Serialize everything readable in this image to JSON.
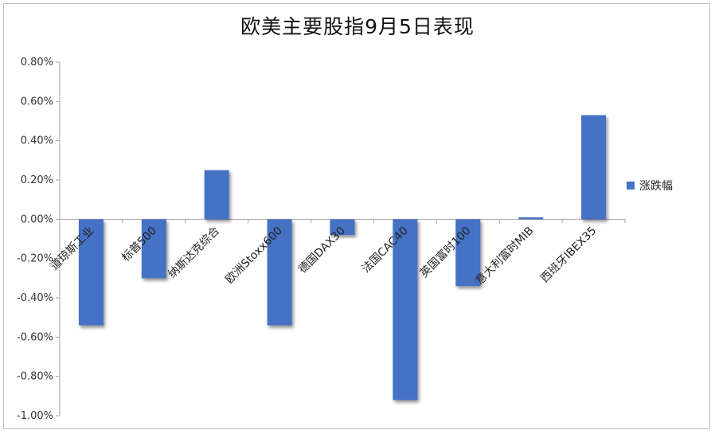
{
  "chart_data": {
    "type": "bar",
    "title": "欧美主要股指9月5日表现",
    "categories": [
      "道琼斯工业",
      "标普500",
      "纳斯达克综合",
      "欧洲Stoxx600",
      "德国DAX30",
      "法国CAC40",
      "英国富时100",
      "意大利富时MIB",
      "西班牙IBEX35"
    ],
    "series": [
      {
        "name": "涨跌幅",
        "values": [
          -0.54,
          -0.3,
          0.25,
          -0.54,
          -0.08,
          -0.92,
          -0.34,
          0.01,
          0.53
        ]
      }
    ],
    "ylim": [
      -1.0,
      0.8
    ],
    "yticks": [
      "0.80%",
      "0.60%",
      "0.40%",
      "0.20%",
      "0.00%",
      "-0.20%",
      "-0.40%",
      "-0.60%",
      "-0.80%",
      "-1.00%"
    ],
    "ytick_values": [
      0.8,
      0.6,
      0.4,
      0.2,
      0.0,
      -0.2,
      -0.4,
      -0.6,
      -0.8,
      -1.0
    ],
    "xlabel": "",
    "ylabel": "",
    "grid": false,
    "legend_position": "right",
    "colors": {
      "bar": "#4472c4",
      "axis": "#a6a6a6"
    }
  }
}
